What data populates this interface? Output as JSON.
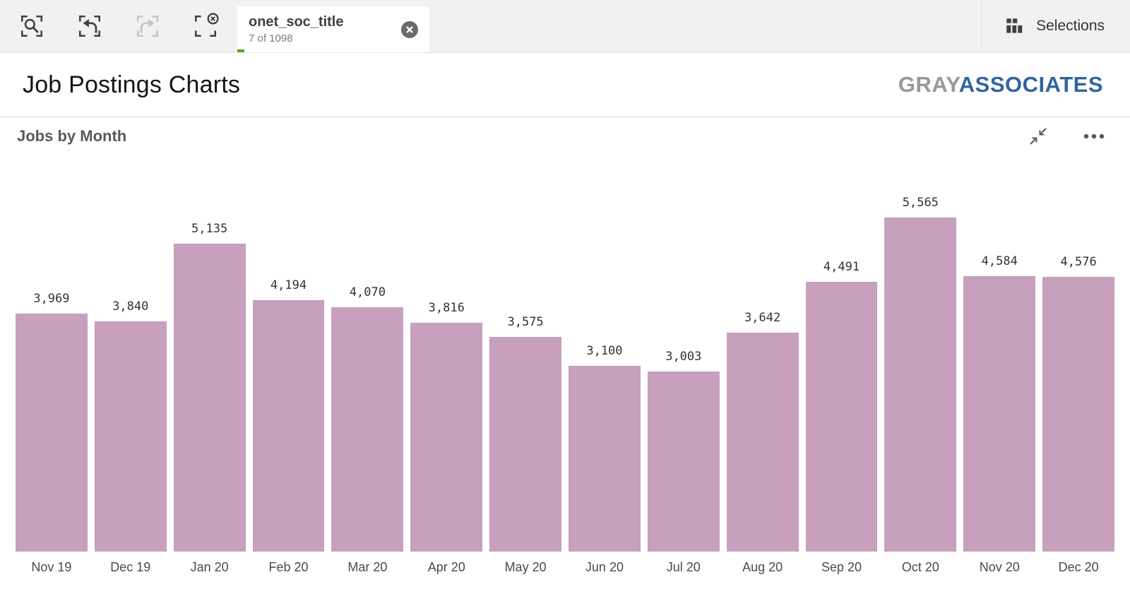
{
  "colors": {
    "accent_green": "#5ba024",
    "bar_color": "#c6a0bc",
    "logo_gray": "#96989a",
    "logo_blue": "#33639e"
  },
  "toolbar": {
    "selection_chip": {
      "field": "onet_soc_title",
      "count": "7 of 1098"
    },
    "selections_label": "Selections"
  },
  "header": {
    "title": "Job Postings Charts",
    "logo_gray": "GRAY",
    "logo_blue": "ASSOCIATES"
  },
  "chart": {
    "title": "Jobs by Month"
  },
  "chart_data": {
    "type": "bar",
    "title": "Jobs by Month",
    "categories": [
      "Nov 19",
      "Dec 19",
      "Jan 20",
      "Feb 20",
      "Mar 20",
      "Apr 20",
      "May 20",
      "Jun 20",
      "Jul 20",
      "Aug 20",
      "Sep 20",
      "Oct 20",
      "Nov 20",
      "Dec 20"
    ],
    "values": [
      3969,
      3840,
      5135,
      4194,
      4070,
      3816,
      3575,
      3100,
      3003,
      3642,
      4491,
      5565,
      4584,
      4576
    ],
    "xlabel": "",
    "ylabel": "",
    "ylim": [
      0,
      5565
    ],
    "grid": false,
    "legend": false,
    "value_labels": true
  }
}
